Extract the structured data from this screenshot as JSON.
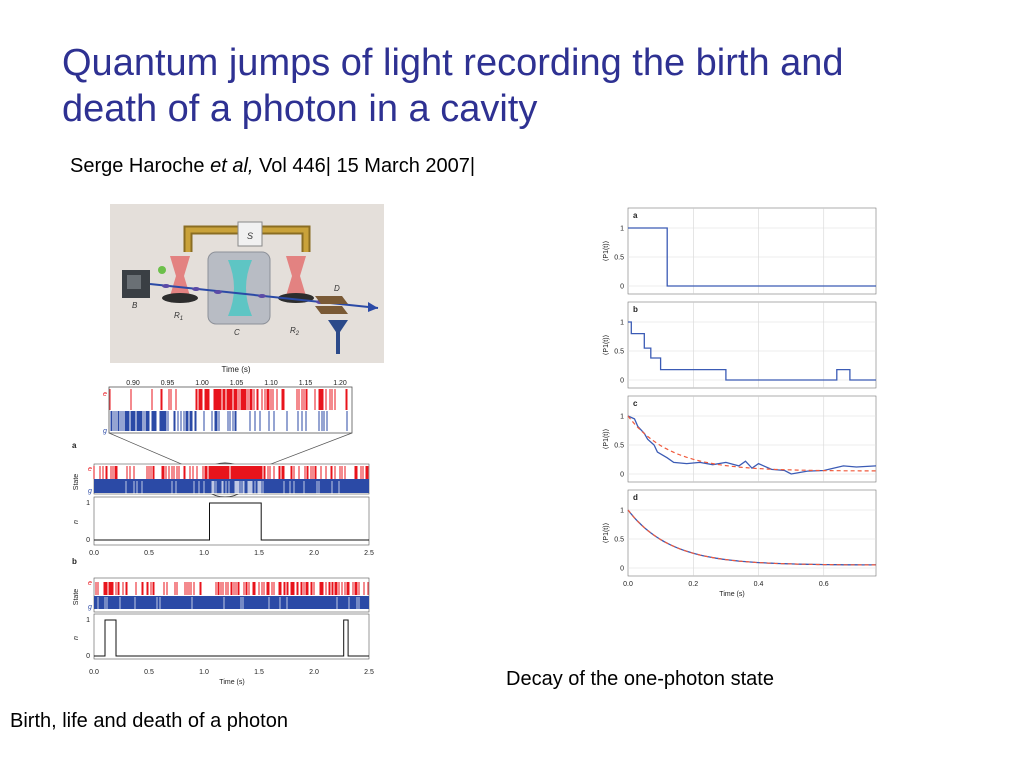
{
  "slide": {
    "title_lines": [
      "Quantum jumps of light recording the birth and",
      "death of a photon in a cavity"
    ],
    "citation": {
      "author": "Serge Haroche ",
      "etal": "et al,",
      "rest": " Vol 446| 15 March 2007|"
    },
    "caption_left": "Birth, life and death of a photon",
    "caption_right": "Decay of the one-photon state"
  },
  "apparatus": {
    "labels": {
      "S": "S",
      "B": "B",
      "D": "D",
      "R1": "R",
      "R1_sub": "1",
      "R2": "R",
      "R2_sub": "2",
      "C": "C"
    }
  },
  "left_figure": {
    "zoom": {
      "axis_title": "Time (s)",
      "ticks": [
        "0.90",
        "0.95",
        "1.00",
        "1.05",
        "1.10",
        "1.15",
        "1.20"
      ],
      "e_label": "e",
      "g_label": "g"
    },
    "panel_a": {
      "letter": "a",
      "state_label": "State",
      "n_label": "n",
      "e_label": "e",
      "g_label": "g",
      "n_ticks": [
        "1",
        "0"
      ]
    },
    "panel_b": {
      "letter": "b",
      "state_label": "State",
      "n_label": "n",
      "e_label": "e",
      "g_label": "g",
      "n_ticks": [
        "1",
        "0"
      ]
    },
    "x_ticks": [
      "0.0",
      "0.5",
      "1.0",
      "1.5",
      "2.0",
      "2.5"
    ],
    "x_title": "Time (s)"
  },
  "chart_data": [
    {
      "type": "line",
      "panel": "a",
      "ylabel": "⟨P1(t)⟩",
      "xlim": [
        0,
        0.76
      ],
      "ylim": [
        0,
        1
      ],
      "yticks": [
        "1",
        "0.5",
        "0"
      ],
      "series": [
        {
          "x": [
            0,
            0.12,
            0.12,
            0.76
          ],
          "y": [
            1,
            1,
            0,
            0
          ]
        }
      ]
    },
    {
      "type": "line",
      "panel": "b",
      "ylabel": "⟨P1(t)⟩",
      "xlim": [
        0,
        0.76
      ],
      "ylim": [
        0,
        1
      ],
      "yticks": [
        "1",
        "0.5",
        "0"
      ],
      "series": [
        {
          "x": [
            0,
            0.01,
            0.01,
            0.05,
            0.05,
            0.07,
            0.07,
            0.1,
            0.1,
            0.3,
            0.3,
            0.64,
            0.64,
            0.68,
            0.68,
            0.76
          ],
          "y": [
            1,
            1,
            0.8,
            0.8,
            0.55,
            0.55,
            0.38,
            0.38,
            0.18,
            0.18,
            0,
            0,
            0.18,
            0.18,
            0,
            0
          ]
        }
      ]
    },
    {
      "type": "line",
      "panel": "c",
      "ylabel": "⟨P1(t)⟩",
      "xlim": [
        0,
        0.76
      ],
      "ylim": [
        0,
        1
      ],
      "yticks": [
        "1",
        "0.5",
        "0"
      ],
      "series": [
        {
          "x": [
            0,
            0.02,
            0.03,
            0.05,
            0.06,
            0.08,
            0.09,
            0.12,
            0.14,
            0.18,
            0.22,
            0.26,
            0.3,
            0.34,
            0.36,
            0.38,
            0.4,
            0.44,
            0.48,
            0.5,
            0.55,
            0.6,
            0.66,
            0.7,
            0.76
          ],
          "y": [
            1,
            0.95,
            0.82,
            0.7,
            0.6,
            0.5,
            0.38,
            0.28,
            0.2,
            0.18,
            0.2,
            0.16,
            0.2,
            0.14,
            0.22,
            0.1,
            0.18,
            0.08,
            0.06,
            0.0,
            0.05,
            0.06,
            0.14,
            0.12,
            0.14
          ]
        },
        {
          "function": "exp",
          "tau": 0.13,
          "floor": 0.05,
          "style": "dashed"
        }
      ]
    },
    {
      "type": "line",
      "panel": "d",
      "ylabel": "⟨P1(t)⟩",
      "xlim": [
        0,
        0.76
      ],
      "ylim": [
        0,
        1
      ],
      "yticks": [
        "1",
        "0.5",
        "0"
      ],
      "xticks": [
        "0.0",
        "0.2",
        "0.4",
        "0.6"
      ],
      "xlabel": "Time (s)",
      "series": [
        {
          "function": "exp",
          "tau": 0.13,
          "floor": 0.05
        },
        {
          "function": "exp",
          "tau": 0.13,
          "floor": 0.05,
          "style": "dashed"
        }
      ]
    }
  ],
  "colors": {
    "title": "#2e3192",
    "excited": "#e8141c",
    "ground": "#2b4aa6",
    "line_blue": "#3b5bb5",
    "fit_red": "#f05a3c"
  }
}
